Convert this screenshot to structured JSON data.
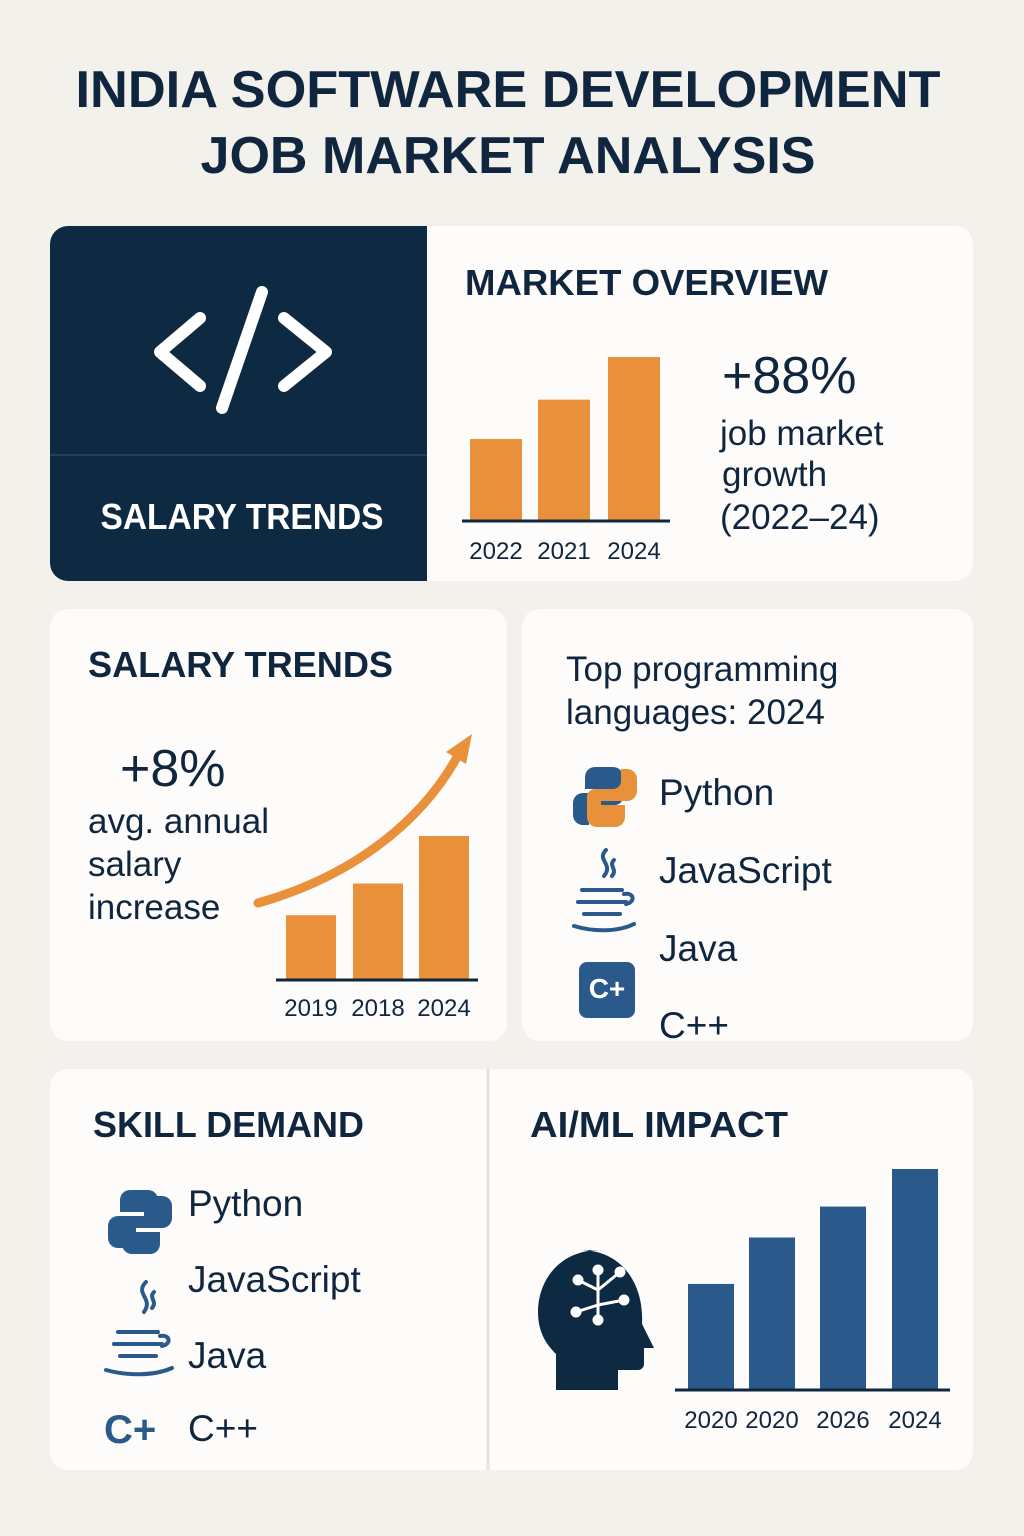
{
  "title": [
    "INDIA SOFTWARE DEVELOPMENT",
    "JOB MARKET ANALYSIS"
  ],
  "hero": {
    "label": "SALARY TRENDS"
  },
  "market_overview": {
    "title": "MARKET OVERVIEW",
    "stat": "+88%",
    "caption": [
      "job market",
      "growth",
      "(2022–24)"
    ],
    "chart": {
      "type": "bar",
      "categories": [
        "2022",
        "2021",
        "2024"
      ],
      "values": [
        50,
        74,
        100
      ],
      "color": "#e8903a"
    }
  },
  "salary_trends": {
    "title": "SALARY TRENDS",
    "stat": "+8%",
    "caption": [
      "avg. annual",
      "salary",
      "increase"
    ],
    "chart": {
      "type": "bar",
      "categories": [
        "2019",
        "2018",
        "2024"
      ],
      "values": [
        45,
        67,
        100
      ],
      "color": "#e8903a"
    }
  },
  "top_languages": {
    "title": [
      "Top programming",
      "languages: 2024"
    ],
    "items": [
      "Python",
      "JavaScript",
      "Java",
      "C++"
    ],
    "icon_label": "C+"
  },
  "skill_demand": {
    "title": "SKILL DEMAND",
    "items": [
      "Python",
      "JavaScript",
      "Java",
      "C++"
    ],
    "icon_label": "C+"
  },
  "ai_ml_impact": {
    "title": "AI/ML IMPACT",
    "chart": {
      "type": "bar",
      "categories": [
        "2020",
        "2020",
        "2026",
        "2024"
      ],
      "values": [
        48,
        69,
        83,
        100
      ],
      "color": "#2a5a8c"
    }
  }
}
